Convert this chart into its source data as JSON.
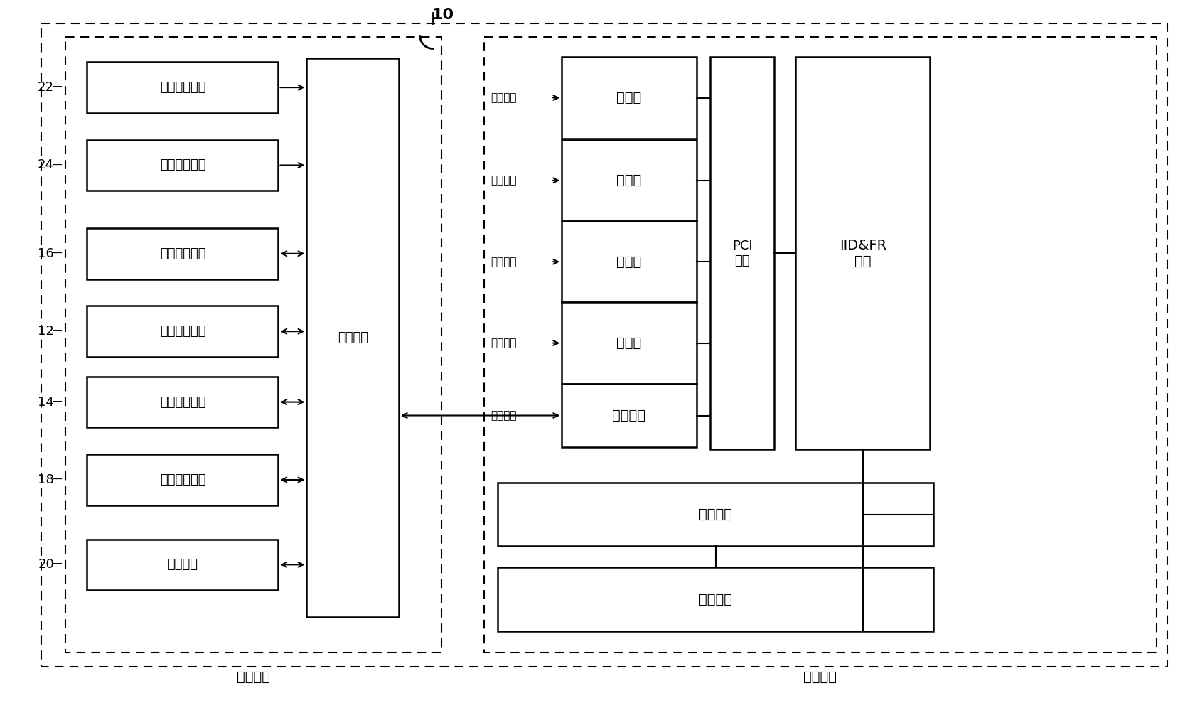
{
  "figure_width": 16.67,
  "figure_height": 9.96,
  "bg_color": "#ffffff",
  "title_label": "10",
  "camera_system_label": "相机系统",
  "recognition_system_label": "识别系统",
  "control_circuit_label": "控制电路",
  "pci_bus_label": "PCI\n总线",
  "iid_fr_label": "IID&FR\n软件",
  "left_boxes": [
    {
      "label": "人脸照明光源",
      "ref": "22"
    },
    {
      "label": "虹膜照明光源",
      "ref": "24"
    },
    {
      "label": "人脸识别相机",
      "ref": "16"
    },
    {
      "label": "虹膜识别相机",
      "ref": "12"
    },
    {
      "label": "虹膜识别相机",
      "ref": "14"
    },
    {
      "label": "人脸识别相机",
      "ref": "18"
    },
    {
      "label": "步进电机",
      "ref": "20"
    }
  ],
  "frame_grabbers": [
    "取帧器",
    "取帧器",
    "取帧器",
    "取帧器"
  ],
  "serial_port_label": "串行端口",
  "recognition_sw_labels": [
    "识别软件",
    "识别软件"
  ],
  "video_signal_label": "视频信号",
  "control_signal_label": "控制信号",
  "ref_labels": [
    "22",
    "24",
    "16",
    "12",
    "14",
    "18",
    "20"
  ]
}
